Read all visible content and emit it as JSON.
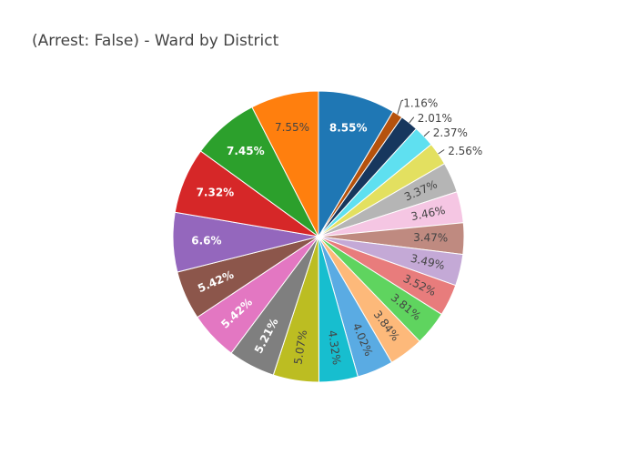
{
  "chart_data": {
    "type": "pie",
    "title": "(Arrest: False) - Ward by District",
    "labels": [
      "8.55%",
      "1.16%",
      "2.01%",
      "2.37%",
      "2.56%",
      "3.37%",
      "3.46%",
      "3.47%",
      "3.49%",
      "3.52%",
      "3.81%",
      "3.84%",
      "4.02%",
      "4.32%",
      "5.07%",
      "5.21%",
      "5.42%",
      "5.42%",
      "6.6%",
      "7.32%",
      "7.45%",
      "7.55%"
    ],
    "values": [
      8.55,
      1.16,
      2.01,
      2.37,
      2.56,
      3.37,
      3.46,
      3.47,
      3.49,
      3.52,
      3.81,
      3.84,
      4.02,
      4.32,
      5.07,
      5.21,
      5.42,
      5.42,
      6.6,
      7.32,
      7.45,
      7.55
    ],
    "colors": [
      "#1f77b4",
      "#b5520d",
      "#17375e",
      "#5fe0f0",
      "#e3e060",
      "#b5b5b5",
      "#f5c6e3",
      "#bf8a80",
      "#c4a9d6",
      "#e87c7c",
      "#5fd45f",
      "#fdb97a",
      "#5aabe3",
      "#17becf",
      "#bcbd22",
      "#7f7f7f",
      "#e377c2",
      "#8c564b",
      "#9467bd",
      "#d62728",
      "#2ca02c",
      "#ff7f0e"
    ],
    "label_colors": [
      "#ffffff",
      "#444444",
      "#444444",
      "#444444",
      "#444444",
      "#444444",
      "#444444",
      "#444444",
      "#444444",
      "#444444",
      "#444444",
      "#444444",
      "#444444",
      "#444444",
      "#444444",
      "#ffffff",
      "#ffffff",
      "#ffffff",
      "#ffffff",
      "#ffffff",
      "#ffffff",
      "#444444"
    ],
    "direction": "clockwise",
    "legend": "none"
  }
}
